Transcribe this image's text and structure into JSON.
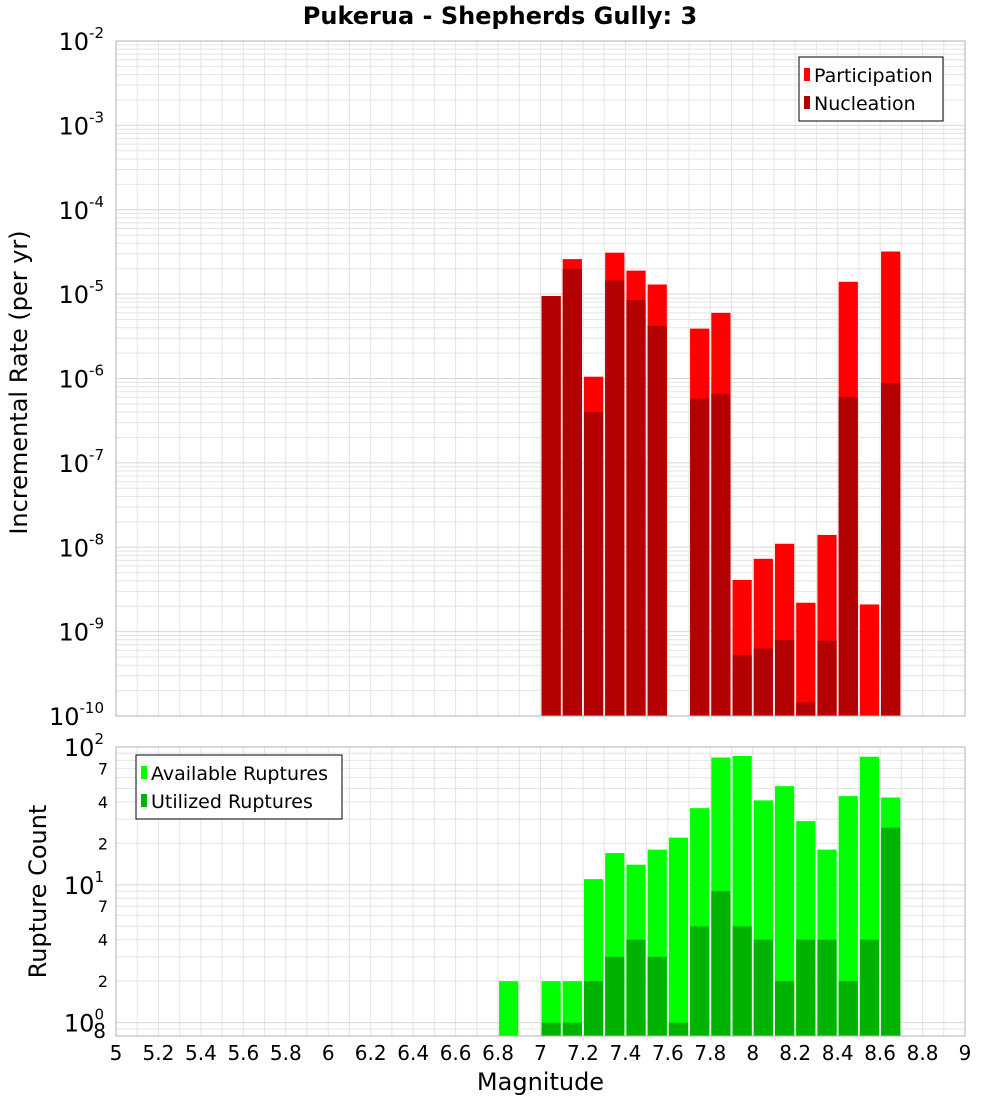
{
  "chart_data": [
    {
      "type": "bar",
      "title": "Pukerua - Shepherds Gully: 3",
      "xlabel": "Magnitude",
      "ylabel": "Incremental Rate (per yr)",
      "scale": "log",
      "xlim": [
        5,
        9
      ],
      "ylim": [
        1e-10,
        0.01
      ],
      "bin_width": 0.1,
      "grid": true,
      "legend_placement": "top-right",
      "y_tick_labels": [
        {
          "base": "10",
          "exp": "-10",
          "value": 1e-10
        },
        {
          "base": "10",
          "exp": "-9",
          "value": 1e-09
        },
        {
          "base": "10",
          "exp": "-8",
          "value": 1e-08
        },
        {
          "base": "10",
          "exp": "-7",
          "value": 1e-07
        },
        {
          "base": "10",
          "exp": "-6",
          "value": 1e-06
        },
        {
          "base": "10",
          "exp": "-5",
          "value": 1e-05
        },
        {
          "base": "10",
          "exp": "-4",
          "value": 0.0001
        },
        {
          "base": "10",
          "exp": "-3",
          "value": 0.001
        },
        {
          "base": "10",
          "exp": "-2",
          "value": 0.01
        }
      ],
      "series": [
        {
          "name": "Participation",
          "color": "#ff0000",
          "x": [
            7.0,
            7.1,
            7.2,
            7.3,
            7.4,
            7.5,
            7.7,
            7.8,
            7.9,
            8.0,
            8.1,
            8.2,
            8.3,
            8.4,
            8.5,
            8.6
          ],
          "values": [
            9.5e-06,
            2.6e-05,
            1.05e-06,
            3.1e-05,
            1.9e-05,
            1.3e-05,
            3.9e-06,
            6e-06,
            4.1e-09,
            7.3e-09,
            1.1e-08,
            2.2e-09,
            1.4e-08,
            1.4e-05,
            2.1e-09,
            3.2e-05
          ]
        },
        {
          "name": "Nucleation",
          "color": "#b30000",
          "x": [
            7.0,
            7.1,
            7.2,
            7.3,
            7.4,
            7.5,
            7.7,
            7.8,
            7.9,
            8.0,
            8.1,
            8.2,
            8.3,
            8.4,
            8.5,
            8.6
          ],
          "values": [
            9.5e-06,
            2e-05,
            4e-07,
            1.45e-05,
            8.5e-06,
            4.2e-06,
            5.8e-07,
            6.6e-07,
            5.3e-10,
            6.3e-10,
            8e-10,
            1.45e-10,
            7.8e-10,
            6e-07,
            0,
            8.8e-07
          ]
        }
      ]
    },
    {
      "type": "bar",
      "xlabel": "Magnitude",
      "ylabel": "Rupture Count",
      "scale": "log",
      "xlim": [
        5,
        9
      ],
      "ylim": [
        0.8,
        100
      ],
      "bin_width": 0.1,
      "grid": true,
      "legend_placement": "top-left",
      "x_tick_labels": [
        "5",
        "5.2",
        "5.4",
        "5.6",
        "5.8",
        "6",
        "6.2",
        "6.4",
        "6.6",
        "6.8",
        "7",
        "7.2",
        "7.4",
        "7.6",
        "7.8",
        "8",
        "8.2",
        "8.4",
        "8.6",
        "8.8",
        "9"
      ],
      "y_major_ticks": [
        {
          "base": "10",
          "exp": "0",
          "value": 1
        },
        {
          "base": "10",
          "exp": "1",
          "value": 10
        },
        {
          "base": "10",
          "exp": "2",
          "value": 100
        }
      ],
      "y_minor_ticks": [
        {
          "label": "8",
          "value": 0.8
        },
        {
          "label": "2",
          "value": 2
        },
        {
          "label": "4",
          "value": 4
        },
        {
          "label": "7",
          "value": 7
        },
        {
          "label": "2",
          "value": 20
        },
        {
          "label": "4",
          "value": 40
        },
        {
          "label": "7",
          "value": 70
        }
      ],
      "series": [
        {
          "name": "Available Ruptures",
          "color": "#00ff00",
          "x": [
            6.8,
            7.0,
            7.1,
            7.2,
            7.3,
            7.4,
            7.5,
            7.6,
            7.7,
            7.8,
            7.9,
            8.0,
            8.1,
            8.2,
            8.3,
            8.4,
            8.5,
            8.6
          ],
          "values": [
            2,
            2,
            2,
            11,
            17,
            14,
            18,
            22,
            36,
            84,
            86,
            41,
            52,
            29,
            18,
            44,
            85,
            43
          ]
        },
        {
          "name": "Utilized Ruptures",
          "color": "#00b300",
          "x": [
            6.8,
            7.0,
            7.1,
            7.2,
            7.3,
            7.4,
            7.5,
            7.6,
            7.7,
            7.8,
            7.9,
            8.0,
            8.1,
            8.2,
            8.3,
            8.4,
            8.5,
            8.6
          ],
          "values": [
            0,
            1,
            1,
            2,
            3,
            4,
            3,
            1,
            5,
            9,
            5,
            4,
            2,
            4,
            4,
            2,
            4,
            26
          ]
        }
      ]
    }
  ]
}
